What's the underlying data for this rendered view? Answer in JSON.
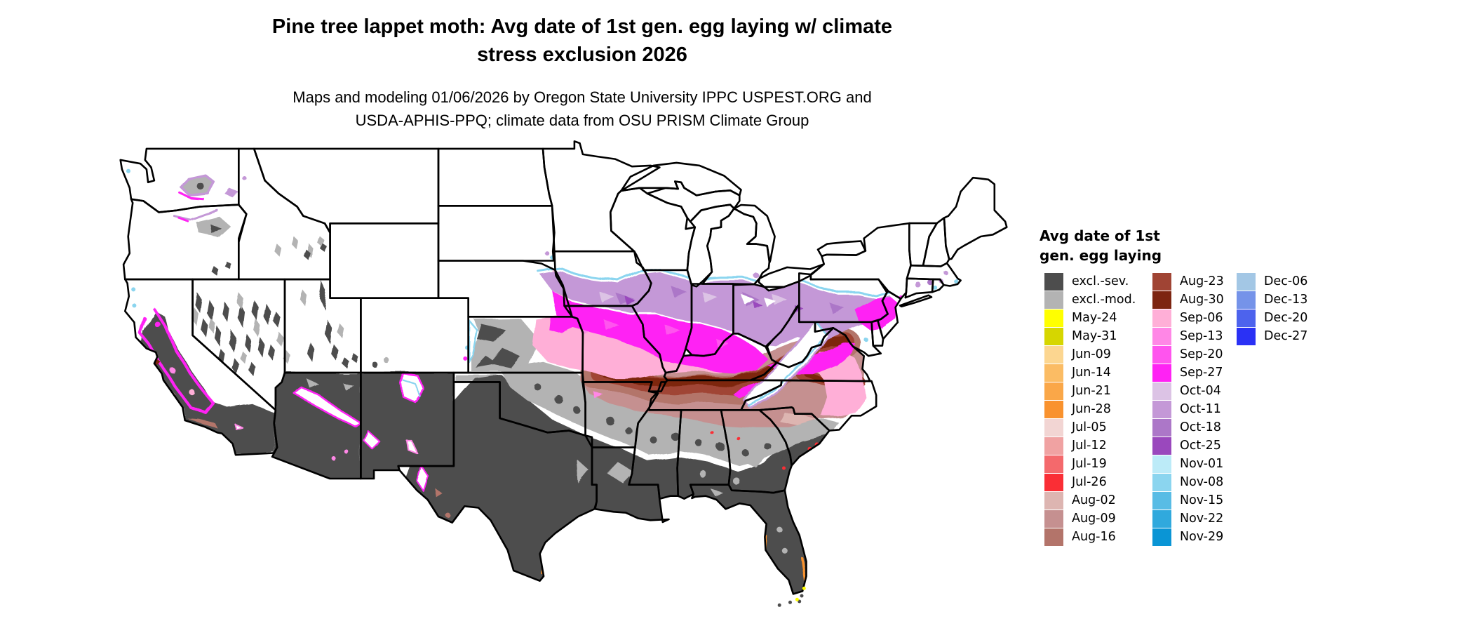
{
  "title": {
    "line1": "Pine tree lappet moth: Avg date of 1st gen. egg laying w/ climate",
    "line2": "stress exclusion 2026"
  },
  "subtitle": {
    "line1": "Maps and modeling 01/06/2026 by Oregon State University IPPC USPEST.ORG and",
    "line2": "USDA-APHIS-PPQ; climate data from OSU PRISM Climate Group"
  },
  "legend": {
    "title_line1": "Avg date of 1st",
    "title_line2": "gen. egg laying",
    "columns": [
      [
        {
          "label": "excl.-sev.",
          "color": "#4D4D4D"
        },
        {
          "label": "excl.-mod.",
          "color": "#B3B3B3"
        },
        {
          "label": "May-24",
          "color": "#FFFF00"
        },
        {
          "label": "May-31",
          "color": "#D6D600"
        },
        {
          "label": "Jun-09",
          "color": "#FCD690"
        },
        {
          "label": "Jun-14",
          "color": "#FBBC64"
        },
        {
          "label": "Jun-21",
          "color": "#FAA748"
        },
        {
          "label": "Jun-28",
          "color": "#F9922E"
        },
        {
          "label": "Jul-05",
          "color": "#F2D5D3"
        },
        {
          "label": "Jul-12",
          "color": "#F0A2A2"
        },
        {
          "label": "Jul-19",
          "color": "#F4696C"
        },
        {
          "label": "Jul-26",
          "color": "#FA2E35"
        },
        {
          "label": "Aug-02",
          "color": "#DDB5B1"
        },
        {
          "label": "Aug-09",
          "color": "#C59090"
        },
        {
          "label": "Aug-16",
          "color": "#B3746A"
        }
      ],
      [
        {
          "label": "Aug-23",
          "color": "#A04434"
        },
        {
          "label": "Aug-30",
          "color": "#7D2511"
        },
        {
          "label": "Sep-06",
          "color": "#FFAFD7"
        },
        {
          "label": "Sep-13",
          "color": "#FF87E6"
        },
        {
          "label": "Sep-20",
          "color": "#FF54EE"
        },
        {
          "label": "Sep-27",
          "color": "#FF22F4"
        },
        {
          "label": "Oct-04",
          "color": "#DCC3E5"
        },
        {
          "label": "Oct-11",
          "color": "#C498D7"
        },
        {
          "label": "Oct-18",
          "color": "#AC77C8"
        },
        {
          "label": "Oct-25",
          "color": "#9A48BD"
        },
        {
          "label": "Nov-01",
          "color": "#BCEBF8"
        },
        {
          "label": "Nov-08",
          "color": "#8BD5EF"
        },
        {
          "label": "Nov-15",
          "color": "#58BCE5"
        },
        {
          "label": "Nov-22",
          "color": "#30A9DD"
        },
        {
          "label": "Nov-29",
          "color": "#0A95D5"
        }
      ],
      [
        {
          "label": "Dec-06",
          "color": "#A3C7E5"
        },
        {
          "label": "Dec-13",
          "color": "#7593E9"
        },
        {
          "label": "Dec-20",
          "color": "#4D63ED"
        },
        {
          "label": "Dec-27",
          "color": "#2A31F5"
        }
      ]
    ]
  },
  "map": {
    "outline_color": "#000000",
    "background_color": "#FFFFFF"
  },
  "chart_data": {
    "type": "choropleth_map",
    "region": "Contiguous United States",
    "title": "Pine tree lappet moth: Avg date of 1st gen. egg laying w/ climate stress exclusion 2026",
    "legend_title": "Avg date of 1st gen. egg laying",
    "categories": [
      "excl.-sev.",
      "excl.-mod.",
      "May-24",
      "May-31",
      "Jun-09",
      "Jun-14",
      "Jun-21",
      "Jun-28",
      "Jul-05",
      "Jul-12",
      "Jul-19",
      "Jul-26",
      "Aug-02",
      "Aug-09",
      "Aug-16",
      "Aug-23",
      "Aug-30",
      "Sep-06",
      "Sep-13",
      "Sep-20",
      "Sep-27",
      "Oct-04",
      "Oct-11",
      "Oct-18",
      "Oct-25",
      "Nov-01",
      "Nov-08",
      "Nov-15",
      "Nov-22",
      "Nov-29",
      "Dec-06",
      "Dec-13",
      "Dec-20",
      "Dec-27"
    ],
    "category_colors": [
      "#4D4D4D",
      "#B3B3B3",
      "#FFFF00",
      "#D6D600",
      "#FCD690",
      "#FBBC64",
      "#FAA748",
      "#F9922E",
      "#F2D5D3",
      "#F0A2A2",
      "#F4696C",
      "#FA2E35",
      "#DDB5B1",
      "#C59090",
      "#B3746A",
      "#A04434",
      "#7D2511",
      "#FFAFD7",
      "#FF87E6",
      "#FF54EE",
      "#FF22F4",
      "#DCC3E5",
      "#C498D7",
      "#AC77C8",
      "#9A48BD",
      "#BCEBF8",
      "#8BD5EF",
      "#58BCE5",
      "#30A9DD",
      "#0A95D5",
      "#A3C7E5",
      "#7593E9",
      "#4D63ED",
      "#2A31F5"
    ],
    "spatial_pattern": {
      "north": "no egg laying shown (white): MT, WY, ND, SD, MN, WI, most of MI, upstate NY, northern New England",
      "upper_midwest_band": "Oct dates (purples) with Nov cyan fringe: S Iowa, N Illinois, N Indiana, Ohio, S Pennsylvania, S New England specks",
      "central_band": "Sep-20/Sep-27 magenta: N Missouri, C Illinois, Indiana, Kentucky, Virginia, New Jersey, NE Kansas",
      "pink_band": "Sep-06/Sep-13: E Kansas, C Missouri, S Illinois/Indiana, N Tennessee strip, VA-NC coastal plain",
      "brown_band": "Aug-02 to Aug-30: S Missouri Ozarks, KY-TN border, N Arkansas, N MS/AL/GA, VA piedmont",
      "south": "excluded-severe dark gray: Texas, Oklahoma S, Louisiana, S Mississippi/Alabama, S Georgia, Florida; excluded-moderate gray band between",
      "west": "mostly white with gray mountain ranges (NV basin-and-range, UT, SE ID, NE OR, AZ/NM white mountain islands fringed magenta/cyan), dark gray deserts in AZ/NM/S CA, California Central Valley dark gray ringed by magenta/pink, orange fringe on Gulf coast, yellow specks at Florida Keys"
    }
  }
}
